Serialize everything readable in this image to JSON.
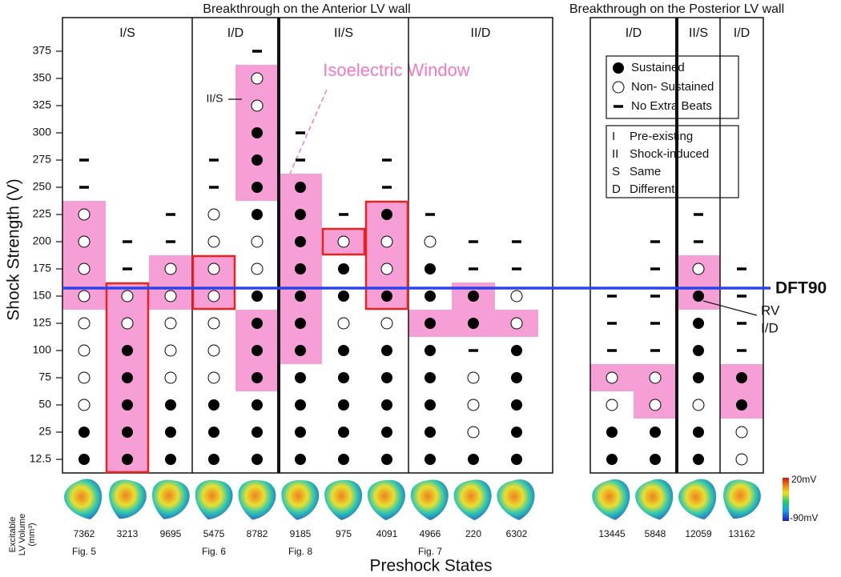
{
  "chart_data": {
    "type": "outcome-grid",
    "panels": [
      {
        "title": "Breakthrough on the Anterior LV wall",
        "groups": [
          {
            "label": "I/S",
            "size": 3
          },
          {
            "label": "I/D",
            "size": 2
          },
          {
            "label": "II/S",
            "size": 3
          },
          {
            "label": "II/D",
            "size": 3
          }
        ]
      },
      {
        "title": "Breakthrough on the Posterior LV wall",
        "groups": [
          {
            "label": "I/D",
            "size": 2
          },
          {
            "label": "II/S",
            "size": 1
          },
          {
            "label": "I/D",
            "size": 1
          }
        ]
      }
    ],
    "ylabel": "Shock Strength (V)",
    "xlabel": "Preshock States",
    "volume_label": [
      "Excitable",
      "LV Volume",
      "(mm³)"
    ],
    "yticks": [
      12.5,
      25,
      50,
      75,
      100,
      125,
      150,
      175,
      200,
      225,
      250,
      275,
      300,
      325,
      350,
      375
    ],
    "columns": [
      {
        "volume": 7362,
        "figure": "Fig. 5",
        "outcomes": [
          0,
          0,
          1,
          1,
          1,
          1,
          1,
          1,
          1,
          1,
          2,
          2,
          null,
          null,
          null,
          null
        ],
        "windows": [
          {
            "from": 150,
            "to": 225,
            "outlined": false
          }
        ]
      },
      {
        "volume": 3213,
        "outcomes": [
          0,
          0,
          0,
          0,
          0,
          1,
          1,
          2,
          2,
          null,
          null,
          null,
          null,
          null,
          null,
          null
        ],
        "windows": [
          {
            "from": 12.5,
            "to": 150,
            "outlined": true
          }
        ]
      },
      {
        "volume": 9695,
        "outcomes": [
          0,
          0,
          0,
          1,
          1,
          1,
          1,
          1,
          2,
          2,
          null,
          null,
          null,
          null,
          null,
          null
        ],
        "windows": [
          {
            "from": 150,
            "to": 175,
            "outlined": false
          }
        ]
      },
      {
        "volume": 5475,
        "figure": "Fig. 6",
        "outcomes": [
          0,
          0,
          0,
          1,
          1,
          1,
          1,
          1,
          1,
          1,
          2,
          2,
          null,
          null,
          null,
          null
        ],
        "windows": [
          {
            "from": 150,
            "to": 175,
            "outlined": true
          }
        ]
      },
      {
        "volume": 8782,
        "outcomes": [
          0,
          0,
          0,
          0,
          0,
          0,
          0,
          1,
          1,
          0,
          0,
          0,
          0,
          1,
          1,
          2
        ],
        "windows": [
          {
            "from": 75,
            "to": 125,
            "outlined": false
          },
          {
            "from": 250,
            "to": 350,
            "outlined": false
          }
        ]
      },
      {
        "volume": 9185,
        "figure": "Fig. 8",
        "outcomes": [
          0,
          0,
          0,
          0,
          0,
          0,
          0,
          0,
          0,
          0,
          0,
          2,
          2,
          null,
          null,
          null
        ],
        "windows": [
          {
            "from": 100,
            "to": 250,
            "outlined": false
          }
        ]
      },
      {
        "volume": 975,
        "outcomes": [
          0,
          0,
          0,
          0,
          0,
          1,
          0,
          0,
          1,
          2,
          null,
          null,
          null,
          null,
          null,
          null
        ],
        "windows": [
          {
            "from": 200,
            "to": 200,
            "outlined": true
          }
        ]
      },
      {
        "volume": 4091,
        "outcomes": [
          0,
          0,
          0,
          0,
          0,
          1,
          0,
          1,
          1,
          0,
          2,
          2,
          null,
          null,
          null,
          null
        ],
        "windows": [
          {
            "from": 150,
            "to": 225,
            "outlined": true
          }
        ]
      },
      {
        "volume": 4966,
        "figure": "Fig. 7",
        "outcomes": [
          0,
          0,
          0,
          0,
          0,
          0,
          0,
          0,
          1,
          2,
          null,
          null,
          null,
          null,
          null,
          null
        ],
        "windows": [
          {
            "from": 125,
            "to": 125,
            "outlined": false
          }
        ]
      },
      {
        "volume": 220,
        "outcomes": [
          0,
          1,
          1,
          1,
          2,
          0,
          0,
          2,
          2,
          null,
          null,
          null,
          null,
          null,
          null,
          null
        ],
        "windows": [
          {
            "from": 125,
            "to": 150,
            "outlined": false
          }
        ]
      },
      {
        "volume": 6302,
        "outcomes": [
          0,
          0,
          0,
          0,
          0,
          1,
          1,
          2,
          2,
          null,
          null,
          null,
          null,
          null,
          null,
          null
        ],
        "windows": [
          {
            "from": 125,
            "to": 125,
            "outlined": false
          }
        ]
      },
      {
        "volume": 13445,
        "outcomes": [
          0,
          0,
          1,
          1,
          2,
          2,
          2,
          null,
          null,
          null,
          null,
          null,
          null,
          null,
          null,
          null
        ],
        "windows": [
          {
            "from": 75,
            "to": 75,
            "outlined": false
          }
        ]
      },
      {
        "volume": 5848,
        "outcomes": [
          0,
          0,
          1,
          1,
          2,
          2,
          2,
          2,
          2,
          null,
          null,
          null,
          null,
          null,
          null,
          null
        ],
        "windows": [
          {
            "from": 50,
            "to": 75,
            "outlined": false
          }
        ]
      },
      {
        "volume": 12059,
        "outcomes": [
          0,
          0,
          1,
          0,
          0,
          0,
          0,
          1,
          2,
          2,
          null,
          null,
          null,
          null,
          null,
          null
        ],
        "windows": [
          {
            "from": 150,
            "to": 175,
            "outlined": false
          }
        ]
      },
      {
        "volume": 13162,
        "outcomes": [
          1,
          1,
          0,
          0,
          2,
          2,
          2,
          2,
          null,
          null,
          null,
          null,
          null,
          null,
          null,
          null
        ],
        "windows": [
          {
            "from": 50,
            "to": 75,
            "outlined": false
          }
        ]
      }
    ],
    "window_color": "#f59fd6",
    "outline_color": "#e8231c",
    "legend": [
      "Sustained",
      "Non- Sustained",
      "No Extra Beats"
    ],
    "key": [
      {
        "code": "I",
        "text": "Pre-existing"
      },
      {
        "code": "II",
        "text": "Shock-induced"
      },
      {
        "code": "S",
        "text": "Same"
      },
      {
        "code": "D",
        "text": "Different"
      }
    ],
    "threshold": {
      "label": "DFT90",
      "color": "#2d43e8"
    },
    "annotations": {
      "window": "Isoelectric Window",
      "callout": "II/S",
      "rv": [
        "RV",
        "I/D"
      ]
    },
    "colorbar": {
      "max_label": "20mV",
      "min_label": "-90mV"
    }
  }
}
